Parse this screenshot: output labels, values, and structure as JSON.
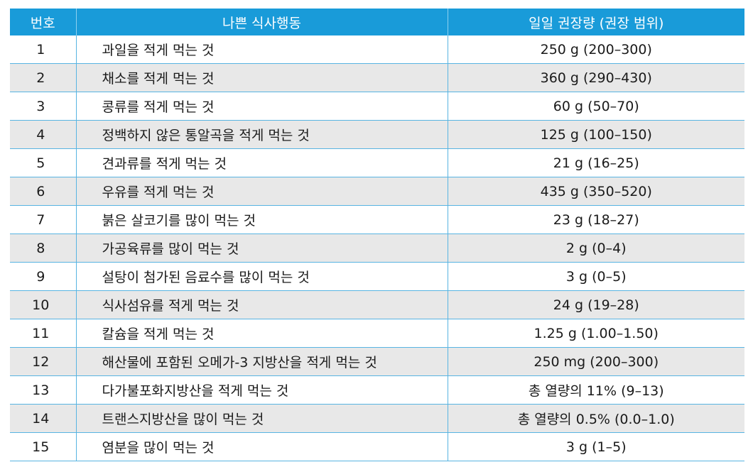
{
  "header": {
    "number": "번호",
    "behavior": "나쁜 식사행동",
    "recommendation": "일일 권장량 (권장 범위)"
  },
  "rows": [
    {
      "no": "1",
      "behavior": "과일을 적게 먹는 것",
      "rec": "250 g (200–300)"
    },
    {
      "no": "2",
      "behavior": "채소를 적게 먹는 것",
      "rec": "360 g (290–430)"
    },
    {
      "no": "3",
      "behavior": "콩류를 적게 먹는 것",
      "rec": "60 g (50–70)"
    },
    {
      "no": "4",
      "behavior": "정백하지 않은 통알곡을 적게 먹는 것",
      "rec": "125 g (100–150)"
    },
    {
      "no": "5",
      "behavior": "견과류를 적게 먹는 것",
      "rec": "21 g (16–25)"
    },
    {
      "no": "6",
      "behavior": "우유를 적게 먹는 것",
      "rec": "435 g (350–520)"
    },
    {
      "no": "7",
      "behavior": "붉은 살코기를 많이 먹는 것",
      "rec": "23 g (18–27)"
    },
    {
      "no": "8",
      "behavior": "가공육류를 많이 먹는 것",
      "rec": "2 g (0–4)"
    },
    {
      "no": "9",
      "behavior": "설탕이 첨가된 음료수를 많이 먹는 것",
      "rec": "3 g (0–5)"
    },
    {
      "no": "10",
      "behavior": "식사섬유를 적게 먹는 것",
      "rec": "24 g (19–28)"
    },
    {
      "no": "11",
      "behavior": "칼슘을 적게 먹는 것",
      "rec": "1.25 g (1.00–1.50)"
    },
    {
      "no": "12",
      "behavior": "해산물에 포함된 오메가-3 지방산을 적게 먹는 것",
      "rec": "250 mg (200–300)"
    },
    {
      "no": "13",
      "behavior": "다가불포화지방산을 적게 먹는 것",
      "rec": "총 열량의 11% (9–13)"
    },
    {
      "no": "14",
      "behavior": "트랜스지방산을 많이 먹는 것",
      "rec": "총 열량의 0.5% (0.0–1.0)"
    },
    {
      "no": "15",
      "behavior": "염분을 많이 먹는 것",
      "rec": "3 g (1–5)"
    }
  ]
}
